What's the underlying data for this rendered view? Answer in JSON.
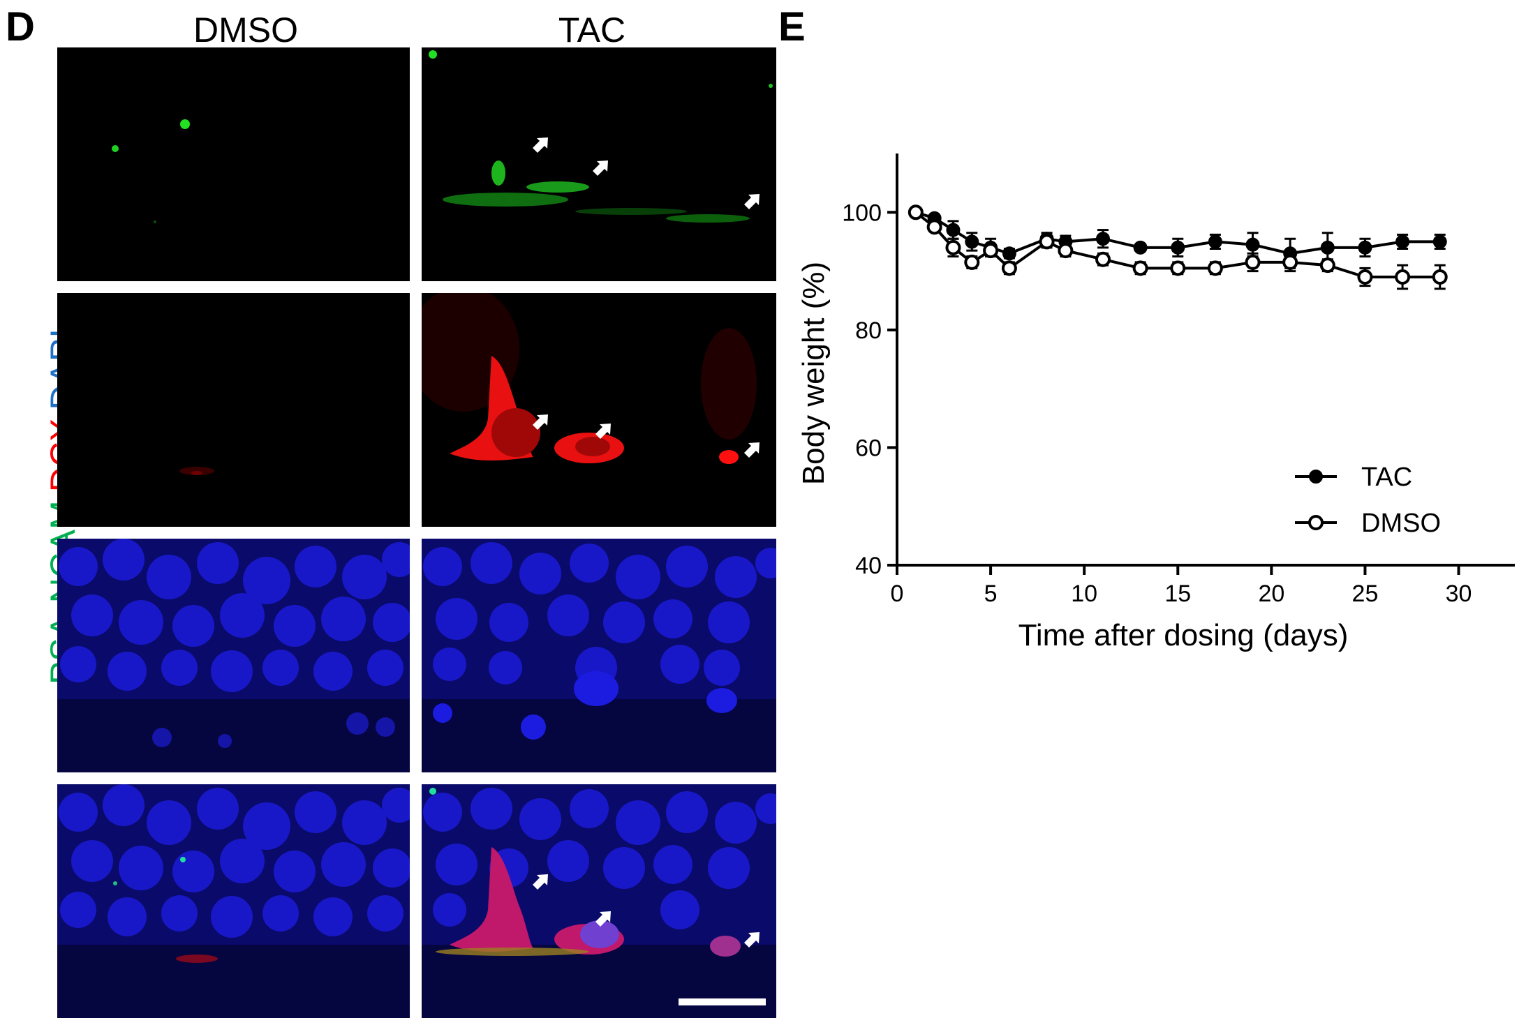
{
  "figure": {
    "panel_d_letter": "D",
    "panel_e_letter": "E",
    "columns": [
      "DMSO",
      "TAC"
    ],
    "stain_labels": [
      {
        "text": "PSA-NCAM",
        "color": "#00b050"
      },
      {
        "text": "DCX",
        "color": "#ff0000"
      },
      {
        "text": "DAPI",
        "color": "#1f6fc5"
      }
    ],
    "rows": [
      "psa-ncam",
      "dcx",
      "dapi",
      "merge"
    ]
  },
  "chart_data": {
    "type": "line",
    "xlabel": "Time after dosing (days)",
    "ylabel": "Body weight (%)",
    "xlim": [
      0,
      33
    ],
    "ylim": [
      40,
      110
    ],
    "xticks": [
      0,
      5,
      10,
      15,
      20,
      25,
      30
    ],
    "yticks": [
      40,
      60,
      80,
      100
    ],
    "legend_position": "bottom-right",
    "series": [
      {
        "name": "TAC",
        "marker": "filled-circle",
        "x": [
          1,
          2,
          3,
          4,
          5,
          6,
          8,
          9,
          11,
          13,
          15,
          17,
          19,
          21,
          23,
          25,
          27,
          29
        ],
        "y": [
          100,
          99,
          97,
          95,
          94,
          93,
          95.5,
          95,
          95.5,
          94,
          94,
          95,
          94.5,
          93,
          94,
          94,
          95,
          95
        ],
        "err": [
          0,
          0.5,
          1.5,
          1.5,
          1.5,
          0.8,
          1,
          1,
          1.5,
          0.5,
          1.5,
          1.2,
          2,
          2.5,
          2.5,
          1.5,
          1.2,
          1.2
        ]
      },
      {
        "name": "DMSO",
        "marker": "open-circle",
        "x": [
          1,
          2,
          3,
          4,
          5,
          6,
          8,
          9,
          11,
          13,
          15,
          17,
          19,
          21,
          23,
          25,
          27,
          29
        ],
        "y": [
          100,
          97.5,
          94,
          91.5,
          93.5,
          90.5,
          95,
          93.5,
          92,
          90.5,
          90.5,
          90.5,
          91.5,
          91.5,
          91,
          89,
          89,
          89
        ],
        "err": [
          0,
          0.5,
          1.5,
          1,
          1,
          1,
          1,
          1,
          1,
          1,
          1,
          1,
          1.5,
          1.5,
          1,
          1.5,
          2,
          2
        ]
      }
    ]
  }
}
